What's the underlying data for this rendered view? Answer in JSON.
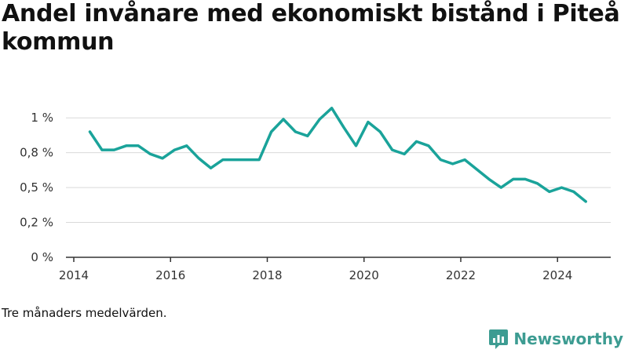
{
  "title": "Andel invånare med ekonomiskt bistånd i Piteå kommun",
  "note": "Tre månaders medelvärden.",
  "brand": {
    "name": "Newsworthy",
    "icon": "newsworthy-logo-icon"
  },
  "colors": {
    "line": "#1aa39a",
    "grid": "#d9d9d9",
    "axis": "#333333",
    "brand": "#3d9c92"
  },
  "chart_data": {
    "type": "line",
    "title": "Andel invånare med ekonomiskt bistånd i Piteå kommun",
    "xlabel": "",
    "ylabel": "",
    "x_ticks": [
      "2014",
      "2016",
      "2018",
      "2020",
      "2022",
      "2024"
    ],
    "y_ticks": [
      "0 %",
      "0,2 %",
      "0,5 %",
      "0,8 %",
      "1 %"
    ],
    "xlim": [
      2014,
      2025.1
    ],
    "ylim": [
      0,
      1.0
    ],
    "grid": true,
    "legend": "none",
    "series": [
      {
        "x": [
          "2014-05",
          "2014-08",
          "2014-11",
          "2015-02",
          "2015-05",
          "2015-08",
          "2015-11",
          "2016-02",
          "2016-05",
          "2016-08",
          "2016-11",
          "2017-02",
          "2017-05",
          "2017-08",
          "2017-11",
          "2018-02",
          "2018-05",
          "2018-08",
          "2018-11",
          "2019-02",
          "2019-05",
          "2019-08",
          "2019-11",
          "2020-02",
          "2020-05",
          "2020-08",
          "2020-11",
          "2021-02",
          "2021-05",
          "2021-08",
          "2021-11",
          "2022-02",
          "2022-05",
          "2022-08",
          "2022-11",
          "2023-02",
          "2023-05",
          "2023-08",
          "2023-11",
          "2024-02",
          "2024-05",
          "2024-08"
        ],
        "values": [
          0.9,
          0.77,
          0.77,
          0.8,
          0.8,
          0.74,
          0.71,
          0.77,
          0.8,
          0.71,
          0.64,
          0.7,
          0.7,
          0.7,
          0.7,
          0.9,
          0.99,
          0.9,
          0.87,
          0.99,
          1.07,
          0.93,
          0.8,
          0.97,
          0.9,
          0.77,
          0.74,
          0.83,
          0.8,
          0.7,
          0.67,
          0.7,
          0.63,
          0.56,
          0.5,
          0.56,
          0.56,
          0.53,
          0.47,
          0.5,
          0.47,
          0.4
        ]
      }
    ]
  }
}
